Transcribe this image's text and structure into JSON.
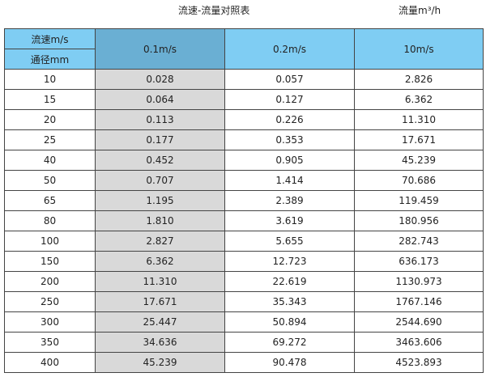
{
  "title": "流速-流量对照表",
  "unit": "流量m³/h",
  "header": {
    "velocity_label": "流速m/s",
    "diameter_label": "通径mm",
    "cols": [
      "0.1m/s",
      "0.2m/s",
      "10m/s"
    ]
  },
  "colors": {
    "header": "#7fcdf3",
    "header_highlight": "#6aafd3",
    "column_highlight": "#d9d9d9"
  },
  "rows": [
    [
      "10",
      "0.028",
      "0.057",
      "2.826"
    ],
    [
      "15",
      "0.064",
      "0.127",
      "6.362"
    ],
    [
      "20",
      "0.113",
      "0.226",
      "11.310"
    ],
    [
      "25",
      "0.177",
      "0.353",
      "17.671"
    ],
    [
      "40",
      "0.452",
      "0.905",
      "45.239"
    ],
    [
      "50",
      "0.707",
      "1.414",
      "70.686"
    ],
    [
      "65",
      "1.195",
      "2.389",
      "119.459"
    ],
    [
      "80",
      "1.810",
      "3.619",
      "180.956"
    ],
    [
      "100",
      "2.827",
      "5.655",
      "282.743"
    ],
    [
      "150",
      "6.362",
      "12.723",
      "636.173"
    ],
    [
      "200",
      "11.310",
      "22.619",
      "1130.973"
    ],
    [
      "250",
      "17.671",
      "35.343",
      "1767.146"
    ],
    [
      "300",
      "25.447",
      "50.894",
      "2544.690"
    ],
    [
      "350",
      "34.636",
      "69.272",
      "3463.606"
    ],
    [
      "400",
      "45.239",
      "90.478",
      "4523.893"
    ]
  ]
}
